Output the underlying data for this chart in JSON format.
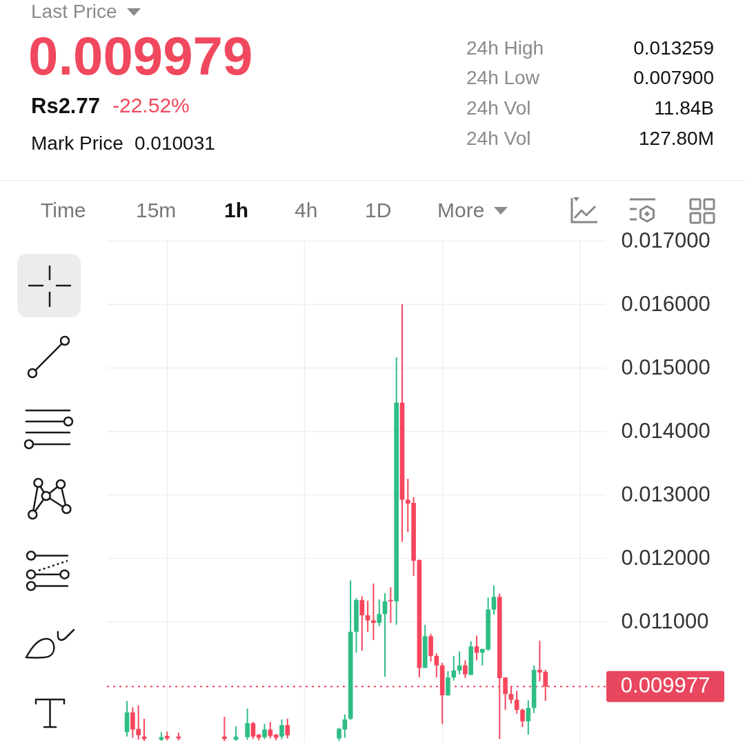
{
  "chart_data": [
    {
      "type": "other",
      "annotations": [
        "Last Price",
        "0.009979",
        "Rs2.77",
        "-22.52%",
        "Mark Price",
        "0.010031",
        "24h High",
        "0.013259",
        "24h Low",
        "0.007900",
        "24h Vol",
        "11.84B",
        "24h Vol",
        "127.80M"
      ]
    },
    {
      "type": "candlestick",
      "annotations": [
        "Time",
        "15m",
        "1h",
        "4h",
        "1D",
        "More"
      ],
      "categories": [
        null,
        null,
        null,
        null,
        null,
        null,
        null,
        null,
        null,
        null,
        null,
        null,
        null,
        null,
        null,
        null,
        null,
        null,
        null,
        null,
        null,
        null,
        null,
        null,
        null,
        null,
        null,
        null,
        null,
        null,
        null,
        null,
        null,
        null,
        null,
        null,
        null,
        null,
        null,
        null,
        null,
        null,
        null,
        null,
        null,
        null,
        null,
        null,
        null,
        null,
        null,
        null,
        null,
        null,
        null,
        null,
        null,
        null,
        null,
        null,
        null,
        null,
        null,
        null,
        null,
        null,
        null,
        null,
        null,
        null,
        null,
        null,
        null,
        null,
        null,
        null,
        null,
        null,
        null,
        null,
        null,
        null,
        null,
        null,
        null,
        null,
        null
      ],
      "ohlc": [
        null,
        null,
        null,
        [
          0.00926,
          0.00975,
          0.00919,
          0.00957
        ],
        [
          0.00957,
          0.00965,
          0.00917,
          0.0093
        ],
        [
          0.00931,
          0.00968,
          0.00914,
          0.00921
        ],
        [
          0.00919,
          0.00947,
          0.00912,
          0.00915
        ],
        null,
        null,
        [
          0.00914,
          0.00926,
          0.00912,
          0.00918
        ],
        [
          0.0092,
          0.00927,
          0.00913,
          0.00916
        ],
        null,
        [
          0.00919,
          0.00925,
          0.00913,
          0.00916
        ],
        null,
        null,
        null,
        null,
        null,
        null,
        null,
        [
          0.00919,
          0.0095,
          0.00912,
          0.00915
        ],
        null,
        [
          0.00914,
          0.00935,
          0.00912,
          0.00919
        ],
        null,
        [
          0.00918,
          0.00963,
          0.00914,
          0.0094
        ],
        [
          0.0094,
          0.00942,
          0.00915,
          0.00919
        ],
        [
          0.00922,
          0.00923,
          0.00913,
          0.00917
        ],
        [
          0.00918,
          0.00939,
          0.00915,
          0.0093
        ],
        [
          0.0093,
          0.00942,
          0.00916,
          0.0092
        ],
        [
          0.00922,
          0.00923,
          0.00913,
          0.00917
        ],
        [
          0.00919,
          0.00946,
          0.00915,
          0.00937
        ],
        [
          0.00937,
          0.00947,
          0.00916,
          0.00921
        ],
        null,
        null,
        null,
        null,
        null,
        null,
        null,
        null,
        [
          0.00916,
          0.00933,
          0.00912,
          0.00931
        ],
        [
          0.0093,
          0.00954,
          0.00917,
          0.00946
        ],
        [
          0.00947,
          0.01165,
          0.00945,
          0.01084
        ],
        [
          0.01084,
          0.01137,
          0.01051,
          0.01134
        ],
        [
          0.01134,
          0.0114,
          0.01054,
          0.0111
        ],
        [
          0.0111,
          0.01133,
          0.01084,
          0.01102
        ],
        [
          0.01102,
          0.0116,
          0.01071,
          0.01098
        ],
        [
          0.01098,
          0.01135,
          0.01093,
          0.01112
        ],
        [
          0.01112,
          0.01145,
          0.01013,
          0.01132
        ],
        [
          0.01134,
          0.01154,
          0.01098,
          0.01132
        ],
        [
          0.01132,
          0.01516,
          0.01095,
          0.01445
        ],
        [
          0.01445,
          0.016,
          0.01226,
          0.01292
        ],
        [
          0.01292,
          0.01325,
          0.01241,
          0.01286
        ],
        [
          0.01287,
          0.01296,
          0.01172,
          0.01196
        ],
        [
          0.01197,
          0.01198,
          0.01012,
          0.01027
        ],
        [
          0.01027,
          0.01095,
          0.01027,
          0.01077
        ],
        [
          0.01077,
          0.01081,
          0.01037,
          0.01046
        ],
        [
          0.01046,
          0.0105,
          0.01012,
          0.01031
        ],
        [
          0.01031,
          0.01035,
          0.00939,
          0.00984
        ],
        [
          0.00984,
          0.01022,
          0.00983,
          0.01012
        ],
        [
          0.01012,
          0.01046,
          0.01007,
          0.01023
        ],
        [
          0.01023,
          0.01053,
          0.01017,
          0.01031
        ],
        [
          0.01031,
          0.01039,
          0.01011,
          0.01017
        ],
        [
          0.01016,
          0.01069,
          0.01016,
          0.01061
        ],
        [
          0.01061,
          0.01078,
          0.01039,
          0.01051
        ],
        [
          0.01051,
          0.01057,
          0.01031,
          0.01057
        ],
        [
          0.01056,
          0.01138,
          0.01054,
          0.01119
        ],
        [
          0.01119,
          0.01157,
          0.01111,
          0.01139
        ],
        [
          0.01139,
          0.01144,
          0.00915,
          0.01011
        ],
        [
          0.01012,
          0.01012,
          0.00961,
          0.00986
        ],
        [
          0.00986,
          0.00998,
          0.00971,
          0.00977
        ],
        [
          0.00977,
          0.00991,
          0.00955,
          0.00961
        ],
        [
          0.00961,
          0.00963,
          0.00934,
          0.00943
        ],
        [
          0.00943,
          0.00976,
          0.00922,
          0.00964
        ],
        [
          0.00964,
          0.01031,
          0.00956,
          0.01024
        ],
        [
          0.01024,
          0.0107,
          0.01006,
          0.0102
        ],
        [
          0.01021,
          0.01024,
          0.00975,
          0.009977
        ],
        null,
        null,
        null,
        null,
        null,
        null,
        null,
        null,
        null,
        null
      ],
      "colors": [
        null,
        null,
        null,
        "#2ebd85",
        "#f6465d",
        "#f6465d",
        "#f6465d",
        null,
        null,
        "#2ebd85",
        "#f6465d",
        null,
        "#f6465d",
        null,
        null,
        null,
        null,
        null,
        null,
        null,
        "#f6465d",
        null,
        "#2ebd85",
        null,
        "#2ebd85",
        "#f6465d",
        "#f6465d",
        "#2ebd85",
        "#f6465d",
        "#f6465d",
        "#2ebd85",
        "#f6465d",
        null,
        null,
        null,
        null,
        null,
        null,
        null,
        null,
        "#2ebd85",
        "#2ebd85",
        "#2ebd85",
        "#2ebd85",
        "#f6465d",
        "#f6465d",
        "#f6465d",
        "#2ebd85",
        "#2ebd85",
        "#f6465d",
        "#2ebd85",
        "#f6465d",
        "#f6465d",
        "#f6465d",
        "#f6465d",
        "#2ebd85",
        "#f6465d",
        "#f6465d",
        "#f6465d",
        "#2ebd85",
        "#2ebd85",
        "#2ebd85",
        "#f6465d",
        "#2ebd85",
        "#f6465d",
        "#2ebd85",
        "#2ebd85",
        "#2ebd85",
        "#f6465d",
        "#f6465d",
        "#f6465d",
        "#f6465d",
        "#f6465d",
        "#2ebd85",
        "#2ebd85",
        "#f6465d",
        "#f6465d",
        null,
        null,
        null,
        null,
        null,
        null,
        null,
        null,
        null,
        null
      ],
      "ylim": [
        0.0091,
        0.017
      ],
      "yticks": [
        {
          "value": 0.011,
          "label": "0.011000"
        },
        {
          "value": 0.012,
          "label": "0.012000"
        },
        {
          "value": 0.013,
          "label": "0.013000"
        },
        {
          "value": 0.014,
          "label": "0.014000"
        },
        {
          "value": 0.015,
          "label": "0.015000"
        },
        {
          "value": 0.016,
          "label": "0.016000"
        },
        {
          "value": 0.017,
          "label": "0.017000"
        }
      ],
      "grid": true,
      "tick_labels": "y",
      "ref_lines": [
        {
          "axis": "y",
          "value": 0.009977,
          "label": "0.009977",
          "color": "#e8475f",
          "line_style": "dotted"
        }
      ]
    }
  ]
}
